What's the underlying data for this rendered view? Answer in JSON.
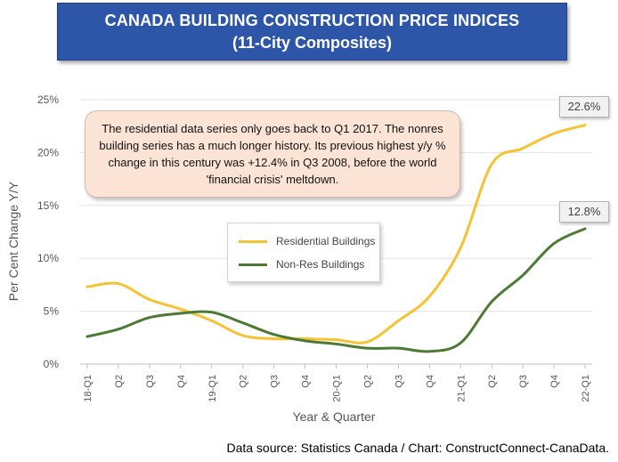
{
  "header": {
    "title": "CANADA BUILDING CONSTRUCTION PRICE INDICES",
    "subtitle": "(11-City Composites)"
  },
  "annotation": "The residential data series only goes back to Q1 2017. The nonres building series has a much longer history. Its previous highest y/y % change in this century was +12.4% in Q3 2008, before the world 'financial crisis' meltdown.",
  "source": "Data source: Statistics Canada / Chart: ConstructConnect-CanaData.",
  "colors": {
    "residential": "#f7c232",
    "nonres": "#4b7a32",
    "banner": "#2d56a8"
  },
  "chart_data": {
    "type": "line",
    "xlabel": "Year & Quarter",
    "ylabel": "Per Cent Change Y/Y",
    "ylim": [
      0,
      25
    ],
    "yticks": [
      "0%",
      "5%",
      "10%",
      "15%",
      "20%",
      "25%"
    ],
    "categories": [
      "18-Q1",
      "Q2",
      "Q3",
      "Q4",
      "19-Q1",
      "Q2",
      "Q3",
      "Q4",
      "20-Q1",
      "Q2",
      "Q3",
      "Q4",
      "21-Q1",
      "Q2",
      "Q3",
      "Q4",
      "22-Q1"
    ],
    "grid": true,
    "legend_position": "center",
    "series": [
      {
        "name": "Residential Buildings",
        "values": [
          7.3,
          7.6,
          6.1,
          5.2,
          4.1,
          2.7,
          2.4,
          2.4,
          2.3,
          2.1,
          4.1,
          6.4,
          11.0,
          18.9,
          20.4,
          21.8,
          22.6
        ]
      },
      {
        "name": "Non-Res Buildings",
        "values": [
          2.6,
          3.3,
          4.4,
          4.8,
          4.9,
          3.9,
          2.8,
          2.2,
          1.9,
          1.5,
          1.5,
          1.2,
          2.0,
          5.9,
          8.4,
          11.4,
          12.8
        ]
      }
    ],
    "callouts": [
      {
        "text": "22.6%",
        "series": 0
      },
      {
        "text": "12.8%",
        "series": 1
      }
    ]
  }
}
